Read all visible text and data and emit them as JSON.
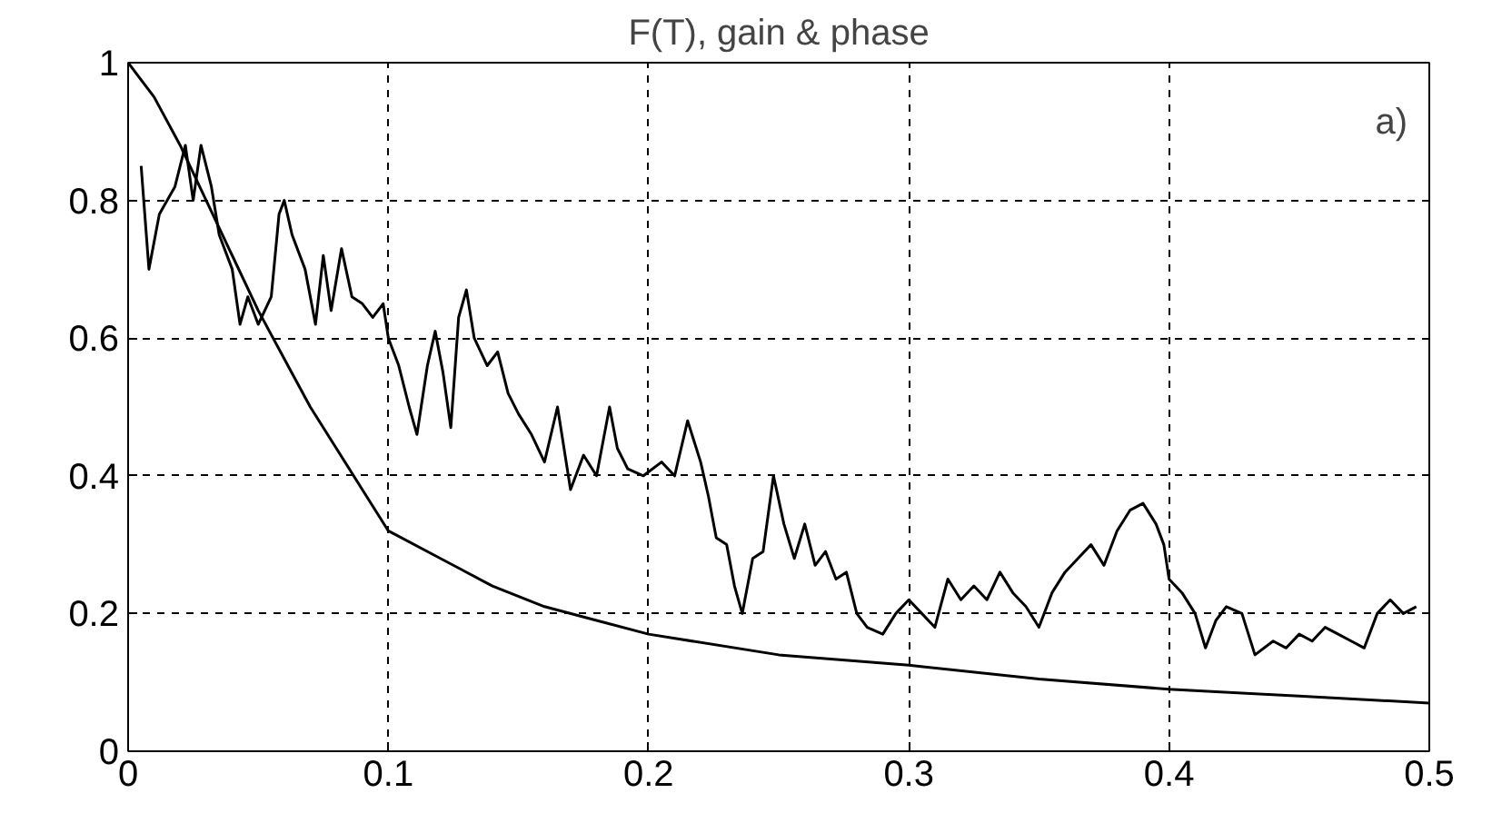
{
  "chart_data": {
    "type": "line",
    "title": "F(T), gain & phase",
    "annotations": [
      "a)"
    ],
    "xlim": [
      0,
      0.5
    ],
    "ylim": [
      0,
      1
    ],
    "xticks": [
      0,
      0.1,
      0.2,
      0.3,
      0.4,
      0.5
    ],
    "yticks": [
      0,
      0.2,
      0.4,
      0.6,
      0.8,
      1
    ],
    "grid": true,
    "marker": "none",
    "line_style": "solid",
    "series": [
      {
        "color": "#000000",
        "x": [
          0,
          0.01,
          0.02,
          0.03,
          0.04,
          0.05,
          0.06,
          0.07,
          0.08,
          0.09,
          0.1,
          0.12,
          0.14,
          0.16,
          0.18,
          0.2,
          0.25,
          0.3,
          0.35,
          0.4,
          0.45,
          0.5
        ],
        "values": [
          1,
          0.95,
          0.88,
          0.8,
          0.72,
          0.64,
          0.57,
          0.5,
          0.44,
          0.38,
          0.32,
          0.28,
          0.24,
          0.21,
          0.19,
          0.17,
          0.14,
          0.125,
          0.105,
          0.09,
          0.08,
          0.07
        ]
      },
      {
        "color": "#000000",
        "x": [
          0.005,
          0.008,
          0.012,
          0.018,
          0.022,
          0.025,
          0.028,
          0.032,
          0.035,
          0.04,
          0.043,
          0.046,
          0.05,
          0.055,
          0.058,
          0.06,
          0.063,
          0.068,
          0.072,
          0.075,
          0.078,
          0.082,
          0.086,
          0.09,
          0.094,
          0.098,
          0.1,
          0.104,
          0.108,
          0.111,
          0.115,
          0.118,
          0.121,
          0.124,
          0.127,
          0.13,
          0.133,
          0.138,
          0.142,
          0.146,
          0.15,
          0.155,
          0.16,
          0.165,
          0.17,
          0.175,
          0.18,
          0.185,
          0.188,
          0.192,
          0.198,
          0.205,
          0.21,
          0.215,
          0.22,
          0.223,
          0.226,
          0.23,
          0.233,
          0.236,
          0.24,
          0.244,
          0.248,
          0.252,
          0.256,
          0.26,
          0.264,
          0.268,
          0.272,
          0.276,
          0.28,
          0.284,
          0.29,
          0.295,
          0.3,
          0.305,
          0.31,
          0.315,
          0.32,
          0.325,
          0.33,
          0.335,
          0.34,
          0.345,
          0.35,
          0.355,
          0.36,
          0.365,
          0.37,
          0.375,
          0.38,
          0.385,
          0.39,
          0.395,
          0.398,
          0.4,
          0.405,
          0.41,
          0.414,
          0.418,
          0.422,
          0.428,
          0.433,
          0.44,
          0.445,
          0.45,
          0.455,
          0.46,
          0.465,
          0.47,
          0.475,
          0.48,
          0.485,
          0.49,
          0.495
        ],
        "values": [
          0.85,
          0.7,
          0.78,
          0.82,
          0.88,
          0.8,
          0.88,
          0.82,
          0.75,
          0.7,
          0.62,
          0.66,
          0.62,
          0.66,
          0.78,
          0.8,
          0.75,
          0.7,
          0.62,
          0.72,
          0.64,
          0.73,
          0.66,
          0.65,
          0.63,
          0.65,
          0.6,
          0.56,
          0.5,
          0.46,
          0.56,
          0.61,
          0.55,
          0.47,
          0.63,
          0.67,
          0.6,
          0.56,
          0.58,
          0.52,
          0.49,
          0.46,
          0.42,
          0.5,
          0.38,
          0.43,
          0.4,
          0.5,
          0.44,
          0.41,
          0.4,
          0.42,
          0.4,
          0.48,
          0.42,
          0.37,
          0.31,
          0.3,
          0.24,
          0.2,
          0.28,
          0.29,
          0.4,
          0.33,
          0.28,
          0.33,
          0.27,
          0.29,
          0.25,
          0.26,
          0.2,
          0.18,
          0.17,
          0.2,
          0.22,
          0.2,
          0.18,
          0.25,
          0.22,
          0.24,
          0.22,
          0.26,
          0.23,
          0.21,
          0.18,
          0.23,
          0.26,
          0.28,
          0.3,
          0.27,
          0.32,
          0.35,
          0.36,
          0.33,
          0.3,
          0.25,
          0.23,
          0.2,
          0.15,
          0.19,
          0.21,
          0.2,
          0.14,
          0.16,
          0.15,
          0.17,
          0.16,
          0.18,
          0.17,
          0.16,
          0.15,
          0.2,
          0.22,
          0.2,
          0.21
        ]
      }
    ]
  }
}
